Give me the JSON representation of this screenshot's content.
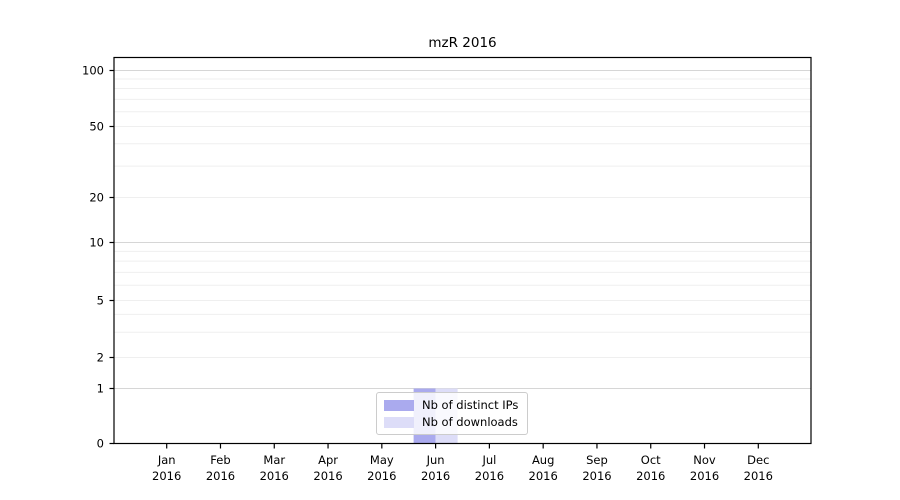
{
  "chart_data": {
    "type": "bar",
    "title": "mzR 2016",
    "xlabel": "",
    "ylabel": "",
    "scale": "symlog",
    "grid": true,
    "legend_position": "lower center",
    "categories": [
      "Jan 2016",
      "Feb 2016",
      "Mar 2016",
      "Apr 2016",
      "May 2016",
      "Jun 2016",
      "Jul 2016",
      "Aug 2016",
      "Sep 2016",
      "Oct 2016",
      "Nov 2016",
      "Dec 2016"
    ],
    "series": [
      {
        "name": "Nb of distinct IPs",
        "color": "#aaaaee",
        "values": [
          0,
          0,
          0,
          0,
          0,
          1,
          0,
          0,
          0,
          0,
          0,
          0
        ]
      },
      {
        "name": "Nb of downloads",
        "color": "#ddddf8",
        "values": [
          0,
          0,
          0,
          0,
          0,
          1,
          0,
          0,
          0,
          0,
          0,
          0
        ]
      }
    ],
    "yticks": [
      0,
      1,
      2,
      5,
      10,
      20,
      50,
      100
    ],
    "ylim": [
      0,
      120
    ],
    "grid_major_values": [
      1,
      10,
      100
    ],
    "grid_minor_values": [
      2,
      3,
      4,
      5,
      6,
      7,
      8,
      9,
      20,
      30,
      40,
      50,
      60,
      70,
      80,
      90
    ],
    "grid_major_color": "#d6d6d6",
    "grid_minor_color": "#efefef",
    "axis_color": "#000000",
    "text_color": "#000000"
  }
}
